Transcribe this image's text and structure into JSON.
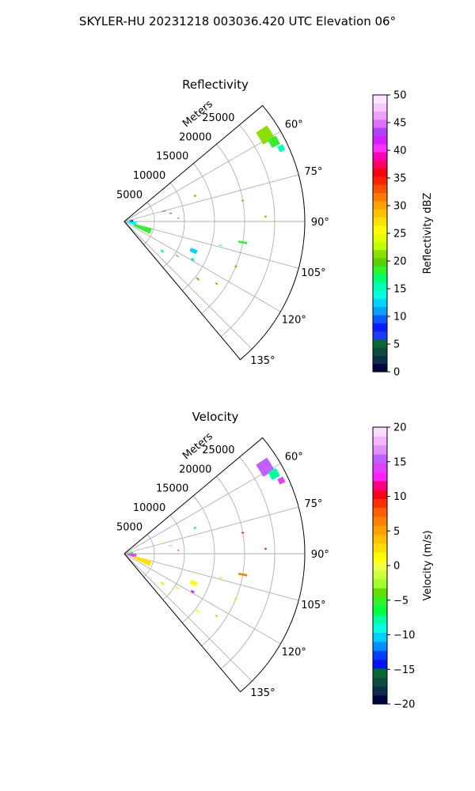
{
  "figure": {
    "suptitle": "SKYLER-HU  20231218  003036.420 UTC Elevation 06°"
  },
  "chart_data": [
    {
      "type": "polar-sector",
      "title": "Reflectivity",
      "radial_label": "Meters",
      "radial_ticks": [
        5000,
        10000,
        15000,
        20000,
        25000
      ],
      "radial_tick_labels": [
        "5000",
        "10000",
        "15000",
        "20000",
        "25000"
      ],
      "rmax": 30000,
      "angle_range_deg": [
        50,
        140
      ],
      "angle_ticks": [
        60,
        75,
        90,
        105,
        120,
        135
      ],
      "angle_tick_labels": [
        "60°",
        "75°",
        "90°",
        "105°",
        "120°",
        "135°"
      ],
      "grid": true,
      "colorbar": {
        "label": "Reflectivity dBZ",
        "vmin": 0,
        "vmax": 50,
        "ticks": [
          0,
          5,
          10,
          15,
          20,
          25,
          30,
          35,
          40,
          45,
          50
        ],
        "tick_labels": [
          "0",
          "5",
          "10",
          "15",
          "20",
          "25",
          "30",
          "35",
          "40",
          "45",
          "50"
        ],
        "colors": [
          "#00063a",
          "#0b2c4a",
          "#0e4a3d",
          "#0a6632",
          "#1a3cff",
          "#0a1cff",
          "#0a5cff",
          "#0aa0ff",
          "#00d4ff",
          "#00ffe0",
          "#00ffb0",
          "#00ff70",
          "#30f030",
          "#5ad000",
          "#8ae000",
          "#c4ff00",
          "#e8ff00",
          "#ffff00",
          "#ffe000",
          "#ffc000",
          "#ffa000",
          "#ff7a00",
          "#ff5000",
          "#ff2000",
          "#ff0010",
          "#ff0060",
          "#ff00b0",
          "#ff30ff",
          "#d020ff",
          "#b040ff",
          "#e070ff",
          "#f0a0ff",
          "#f8c8ff",
          "#ffe8ff"
        ]
      },
      "echoes": [
        {
          "angle": 58.5,
          "range": 27500,
          "angle_width": 5.0,
          "range_width": 2200,
          "value": 22
        },
        {
          "angle": 62.0,
          "range": 28200,
          "angle_width": 3.0,
          "range_width": 1500,
          "value": 18
        },
        {
          "angle": 65.0,
          "range": 28800,
          "angle_width": 2.0,
          "range_width": 1000,
          "value": 15
        },
        {
          "angle": 70.0,
          "range": 12500,
          "angle_width": 1.2,
          "range_width": 400,
          "value": 20
        },
        {
          "angle": 75.5,
          "range": 6800,
          "angle_width": 1.0,
          "range_width": 600,
          "value": 10
        },
        {
          "angle": 80.0,
          "range": 7800,
          "angle_width": 0.8,
          "range_width": 400,
          "value": 8
        },
        {
          "angle": 86.5,
          "range": 9000,
          "angle_width": 0.8,
          "range_width": 300,
          "value": 10
        },
        {
          "angle": 88.0,
          "range": 23500,
          "angle_width": 0.8,
          "range_width": 300,
          "value": 20
        },
        {
          "angle": 100.0,
          "range": 20000,
          "angle_width": 1.0,
          "range_width": 1500,
          "value": 18
        },
        {
          "angle": 104.0,
          "range": 16500,
          "angle_width": 0.6,
          "range_width": 500,
          "value": 14
        },
        {
          "angle": 113.0,
          "range": 12500,
          "angle_width": 3.0,
          "range_width": 1200,
          "value": 13
        },
        {
          "angle": 119.0,
          "range": 13000,
          "angle_width": 1.5,
          "range_width": 600,
          "value": 16
        },
        {
          "angle": 123.0,
          "range": 10500,
          "angle_width": 1.0,
          "range_width": 600,
          "value": 18
        },
        {
          "angle": 112.0,
          "range": 20000,
          "angle_width": 0.8,
          "range_width": 400,
          "value": 20
        },
        {
          "angle": 124.0,
          "range": 18500,
          "angle_width": 0.8,
          "range_width": 400,
          "value": 20
        },
        {
          "angle": 128.0,
          "range": 15500,
          "angle_width": 1.0,
          "range_width": 600,
          "value": 20
        },
        {
          "angle": 100.0,
          "range": 1300,
          "angle_width": 20.0,
          "range_width": 1500,
          "value": 14
        },
        {
          "angle": 110.0,
          "range": 3200,
          "angle_width": 12.0,
          "range_width": 3000,
          "value": 18
        },
        {
          "angle": 85.0,
          "range": 1200,
          "angle_width": 12.0,
          "range_width": 600,
          "value": 6
        },
        {
          "angle": 128.0,
          "range": 8000,
          "angle_width": 2.0,
          "range_width": 600,
          "value": 16
        },
        {
          "angle": 80.0,
          "range": 20000,
          "angle_width": 0.6,
          "range_width": 400,
          "value": 20
        }
      ]
    },
    {
      "type": "polar-sector",
      "title": "Velocity",
      "radial_label": "Meters",
      "radial_ticks": [
        5000,
        10000,
        15000,
        20000,
        25000
      ],
      "radial_tick_labels": [
        "5000",
        "10000",
        "15000",
        "20000",
        "25000"
      ],
      "rmax": 30000,
      "angle_range_deg": [
        50,
        140
      ],
      "angle_ticks": [
        60,
        75,
        90,
        105,
        120,
        135
      ],
      "angle_tick_labels": [
        "60°",
        "75°",
        "90°",
        "105°",
        "120°",
        "135°"
      ],
      "grid": true,
      "colorbar": {
        "label": "Velocity (m/s)",
        "vmin": -20,
        "vmax": 20,
        "ticks": [
          -20,
          -15,
          -10,
          -5,
          0,
          5,
          10,
          15,
          20
        ],
        "tick_labels": [
          "−20",
          "−15",
          "−10",
          "−5",
          "0",
          "5",
          "10",
          "15",
          "20"
        ],
        "colors": [
          "#00063a",
          "#0b2c4a",
          "#0e4a3d",
          "#0a6632",
          "#0010ff",
          "#0040ff",
          "#0090ff",
          "#00d0ff",
          "#00ffe0",
          "#00ffa0",
          "#00ff40",
          "#30f030",
          "#60e000",
          "#a0ff30",
          "#ccff40",
          "#f0ff40",
          "#ffff00",
          "#ffe000",
          "#ffc000",
          "#ffa000",
          "#ff8000",
          "#ff6000",
          "#ff3000",
          "#ff0020",
          "#ff0080",
          "#ff20ff",
          "#e040ff",
          "#c060ff",
          "#e090ff",
          "#f0b8ff",
          "#fcdcff"
        ]
      },
      "echoes": [
        {
          "angle": 58.5,
          "range": 27500,
          "angle_width": 5.0,
          "range_width": 2200,
          "value": 15
        },
        {
          "angle": 62.0,
          "range": 28200,
          "angle_width": 3.0,
          "range_width": 1500,
          "value": -8
        },
        {
          "angle": 65.0,
          "range": 28800,
          "angle_width": 2.0,
          "range_width": 1000,
          "value": 14
        },
        {
          "angle": 70.0,
          "range": 12500,
          "angle_width": 1.2,
          "range_width": 400,
          "value": -10
        },
        {
          "angle": 75.5,
          "range": 6800,
          "angle_width": 1.0,
          "range_width": 600,
          "value": 3
        },
        {
          "angle": 80.0,
          "range": 7800,
          "angle_width": 0.8,
          "range_width": 400,
          "value": 7
        },
        {
          "angle": 86.5,
          "range": 9000,
          "angle_width": 0.8,
          "range_width": 300,
          "value": 10
        },
        {
          "angle": 88.0,
          "range": 23500,
          "angle_width": 0.8,
          "range_width": 300,
          "value": 12
        },
        {
          "angle": 100.0,
          "range": 20000,
          "angle_width": 1.0,
          "range_width": 1500,
          "value": 6
        },
        {
          "angle": 104.0,
          "range": 16500,
          "angle_width": 0.6,
          "range_width": 500,
          "value": 2
        },
        {
          "angle": 113.0,
          "range": 12500,
          "angle_width": 3.0,
          "range_width": 1200,
          "value": 1
        },
        {
          "angle": 119.0,
          "range": 13000,
          "angle_width": 1.5,
          "range_width": 600,
          "value": 13
        },
        {
          "angle": 123.0,
          "range": 10500,
          "angle_width": 1.0,
          "range_width": 600,
          "value": 2
        },
        {
          "angle": 112.0,
          "range": 20000,
          "angle_width": 0.8,
          "range_width": 400,
          "value": 3
        },
        {
          "angle": 124.0,
          "range": 18500,
          "angle_width": 0.8,
          "range_width": 400,
          "value": 4
        },
        {
          "angle": 128.0,
          "range": 15500,
          "angle_width": 1.0,
          "range_width": 600,
          "value": 1
        },
        {
          "angle": 100.0,
          "range": 1300,
          "angle_width": 20.0,
          "range_width": 1500,
          "value": 14
        },
        {
          "angle": 110.0,
          "range": 3200,
          "angle_width": 12.0,
          "range_width": 3000,
          "value": 3
        },
        {
          "angle": 85.0,
          "range": 1200,
          "angle_width": 12.0,
          "range_width": 600,
          "value": -6
        },
        {
          "angle": 128.0,
          "range": 8000,
          "angle_width": 2.0,
          "range_width": 600,
          "value": 2
        },
        {
          "angle": 80.0,
          "range": 20000,
          "angle_width": 0.6,
          "range_width": 400,
          "value": 12
        }
      ]
    }
  ]
}
